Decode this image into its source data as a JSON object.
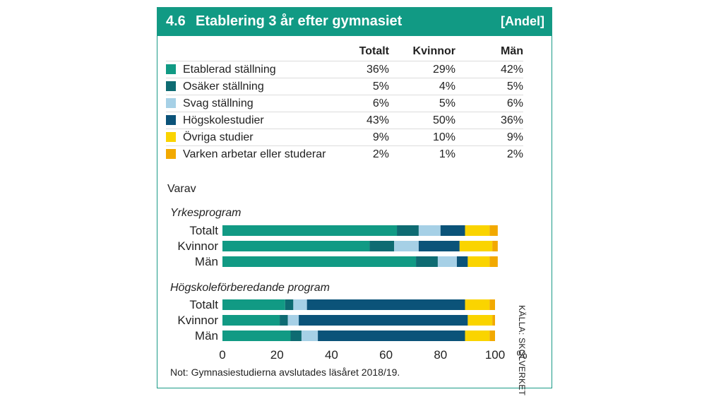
{
  "header": {
    "number": "4.6",
    "title": "Etablering 3 år efter gymnasiet",
    "unit": "[Andel]"
  },
  "table": {
    "columns": [
      "Totalt",
      "Kvinnor",
      "Män"
    ],
    "rows": [
      {
        "label": "Etablerad ställning",
        "color": "#119a84",
        "values": [
          "36%",
          "29%",
          "42%"
        ]
      },
      {
        "label": "Osäker ställning",
        "color": "#0e6b72",
        "values": [
          "5%",
          "4%",
          "5%"
        ]
      },
      {
        "label": "Svag ställning",
        "color": "#a6d0e6",
        "values": [
          "6%",
          "5%",
          "6%"
        ]
      },
      {
        "label": "Högskolestudier",
        "color": "#0b5379",
        "values": [
          "43%",
          "50%",
          "36%"
        ]
      },
      {
        "label": "Övriga studier",
        "color": "#fad400",
        "values": [
          "9%",
          "10%",
          "9%"
        ]
      },
      {
        "label": "Varken arbetar eller studerar",
        "color": "#f2a900",
        "values": [
          "2%",
          "1%",
          "2%"
        ]
      }
    ]
  },
  "varav": "Varav",
  "note": "Not: Gymnasiestudierna avslutades läsåret 2018/19.",
  "source": "KÄLLA: SKOLVERKET",
  "chart_data": {
    "type": "bar",
    "orientation": "horizontal",
    "stacked": true,
    "xlim": [
      0,
      100
    ],
    "xticks": [
      0,
      20,
      40,
      60,
      80,
      100
    ],
    "xunit": "%",
    "categories_order": [
      "Etablerad ställning",
      "Osäker ställning",
      "Svag ställning",
      "Högskolestudier",
      "Övriga studier",
      "Varken arbetar eller studerar"
    ],
    "colors": [
      "#119a84",
      "#0e6b72",
      "#a6d0e6",
      "#0b5379",
      "#fad400",
      "#f2a900"
    ],
    "groups": [
      {
        "title": "Yrkesprogram",
        "bars": [
          {
            "label": "Totalt",
            "values": [
              64,
              8,
              8,
              9,
              9,
              3
            ]
          },
          {
            "label": "Kvinnor",
            "values": [
              54,
              9,
              9,
              15,
              12,
              2
            ]
          },
          {
            "label": "Män",
            "values": [
              71,
              8,
              7,
              4,
              8,
              3
            ]
          }
        ]
      },
      {
        "title": "Högskoleförberedande program",
        "bars": [
          {
            "label": "Totalt",
            "values": [
              23,
              3,
              5,
              58,
              9,
              2
            ]
          },
          {
            "label": "Kvinnor",
            "values": [
              21,
              3,
              4,
              62,
              9,
              1
            ]
          },
          {
            "label": "Män",
            "values": [
              25,
              4,
              6,
              54,
              9,
              2
            ]
          }
        ]
      }
    ]
  }
}
